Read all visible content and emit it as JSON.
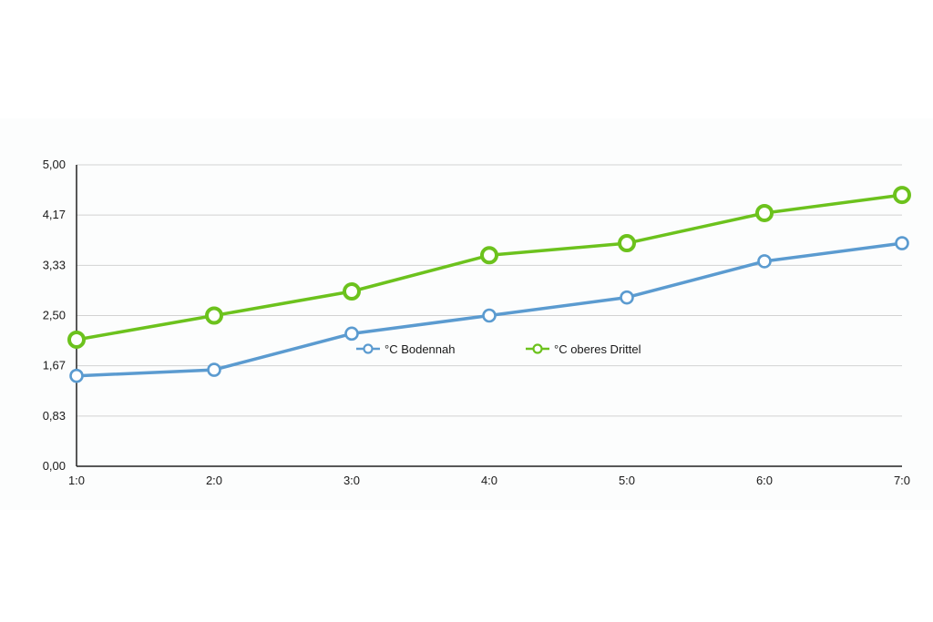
{
  "chart_data": {
    "type": "line",
    "title": "",
    "xlabel": "",
    "ylabel": "",
    "categories": [
      "1:0",
      "2:0",
      "3:0",
      "4:0",
      "5:0",
      "6:0",
      "7:0"
    ],
    "y_ticks": [
      "0,00",
      "0,83",
      "1,67",
      "2,50",
      "3,33",
      "4,17",
      "5,00"
    ],
    "ylim": [
      0,
      5
    ],
    "grid": true,
    "legend_position": "center",
    "series": [
      {
        "name": "°C Bodennah",
        "color": "#5b9bd0",
        "values": [
          1.5,
          1.6,
          2.2,
          2.5,
          2.8,
          3.4,
          3.7
        ]
      },
      {
        "name": "°C oberes Drittel",
        "color": "#6cc21d",
        "values": [
          2.1,
          2.5,
          2.9,
          3.5,
          3.7,
          4.2,
          4.5
        ]
      }
    ]
  }
}
